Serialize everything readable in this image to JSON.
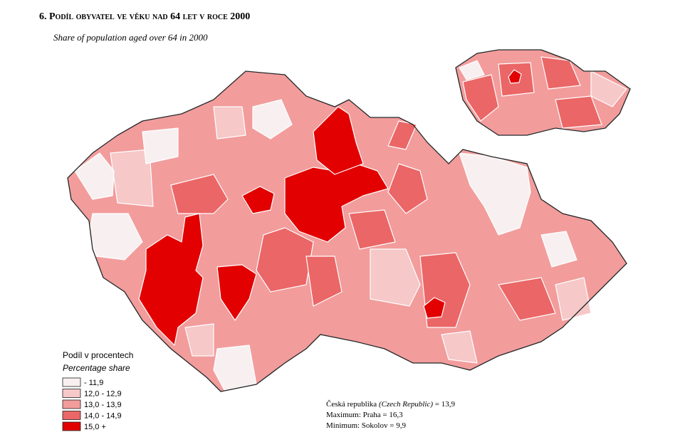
{
  "header": {
    "title": "6. Podíl obyvatel ve věku nad 64 let v roce 2000",
    "subtitle": "Share of population aged over 64 in 2000"
  },
  "legend": {
    "title": "Podíl v procentech",
    "subtitle": "Percentage share",
    "items": [
      {
        "label": "- 11,9",
        "color": "#f8f0f0"
      },
      {
        "label": "12,0 - 12,9",
        "color": "#f6c8c8"
      },
      {
        "label": "13,0 - 13,9",
        "color": "#f29c9c"
      },
      {
        "label": "14,0 - 14,9",
        "color": "#eb6666"
      },
      {
        "label": "15,0 +",
        "color": "#e20000"
      }
    ]
  },
  "summary": [
    {
      "label": "Česká republika",
      "note": "(Czech Republic)",
      "value": "= 13,9"
    },
    {
      "label": "Maximum: Praha = 16,3"
    },
    {
      "label": "Minimum: Sokolov = 9,9"
    }
  ]
}
